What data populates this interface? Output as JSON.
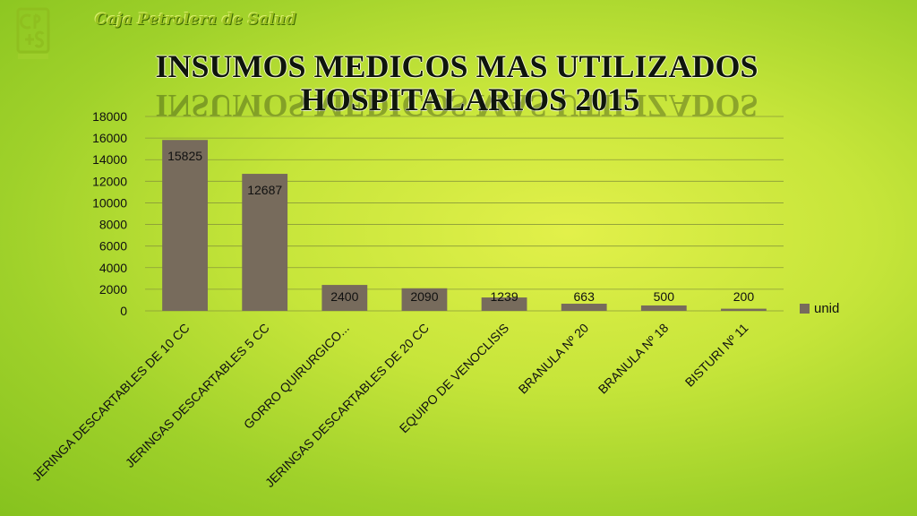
{
  "header": {
    "organization": "Caja Petrolera de Salud",
    "logo_text": "cps",
    "title_line1": "INSUMOS MEDICOS MAS UTILIZADOS",
    "title_line2": "HOSPITALARIOS  2015"
  },
  "chart_data": {
    "type": "bar",
    "categories": [
      "JERINGA DESCARTABLES DE 10 CC",
      "JERINGAS DESCARTABLES 5 CC",
      "GORRO QUIRURGICO...",
      "JERINGAS DESCARTABLES DE 20 CC",
      "EQUIPO DE VENOCLISIS",
      "BRANULA Nº 20",
      "BRANULA Nº 18",
      "BISTURI Nº 11"
    ],
    "series": [
      {
        "name": "unid",
        "values": [
          15825,
          12687,
          2400,
          2090,
          1239,
          663,
          500,
          200
        ]
      }
    ],
    "ylim": [
      0,
      18000
    ],
    "yticks": [
      0,
      2000,
      4000,
      6000,
      8000,
      10000,
      12000,
      14000,
      16000,
      18000
    ],
    "grid": true,
    "legend_position": "right",
    "bar_color": "#776b5c"
  }
}
